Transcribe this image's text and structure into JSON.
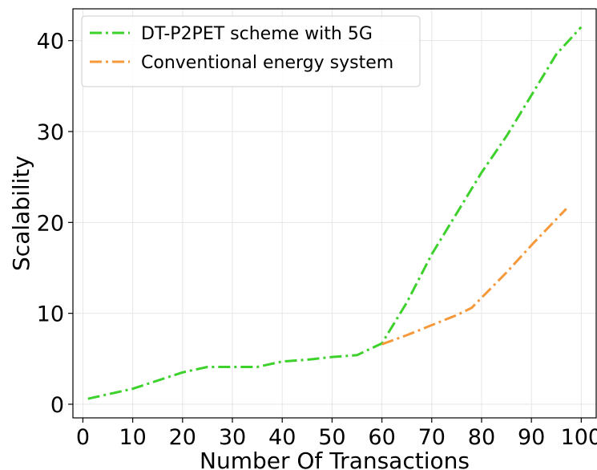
{
  "chart_data": {
    "type": "line",
    "xlabel": "Number Of Transactions",
    "ylabel": "Scalability",
    "xlim": [
      -2,
      103
    ],
    "ylim": [
      -1.5,
      43.5
    ],
    "xticks": [
      0,
      10,
      20,
      30,
      40,
      50,
      60,
      70,
      80,
      90,
      100
    ],
    "yticks": [
      0,
      10,
      20,
      30,
      40
    ],
    "grid": true,
    "legend_position": "top-left",
    "series": [
      {
        "name": "DT-P2PET scheme with 5G",
        "color": "#3dd12b",
        "dash": "dash-dot",
        "x": [
          1,
          10,
          20,
          25,
          30,
          35,
          40,
          45,
          50,
          55,
          60,
          65,
          70,
          75,
          80,
          85,
          90,
          95,
          100
        ],
        "y": [
          0.6,
          1.7,
          3.5,
          4.1,
          4.1,
          4.1,
          4.7,
          4.9,
          5.2,
          5.4,
          6.7,
          11.2,
          16.5,
          21.0,
          25.5,
          29.5,
          34.0,
          38.5,
          41.5
        ]
      },
      {
        "name": "Conventional energy system",
        "color": "#f5993b",
        "dash": "dash-dot",
        "x": [
          60,
          65,
          70,
          75,
          78,
          85,
          90,
          97
        ],
        "y": [
          6.6,
          7.6,
          8.7,
          9.8,
          10.6,
          14.5,
          17.5,
          21.5
        ]
      }
    ]
  }
}
